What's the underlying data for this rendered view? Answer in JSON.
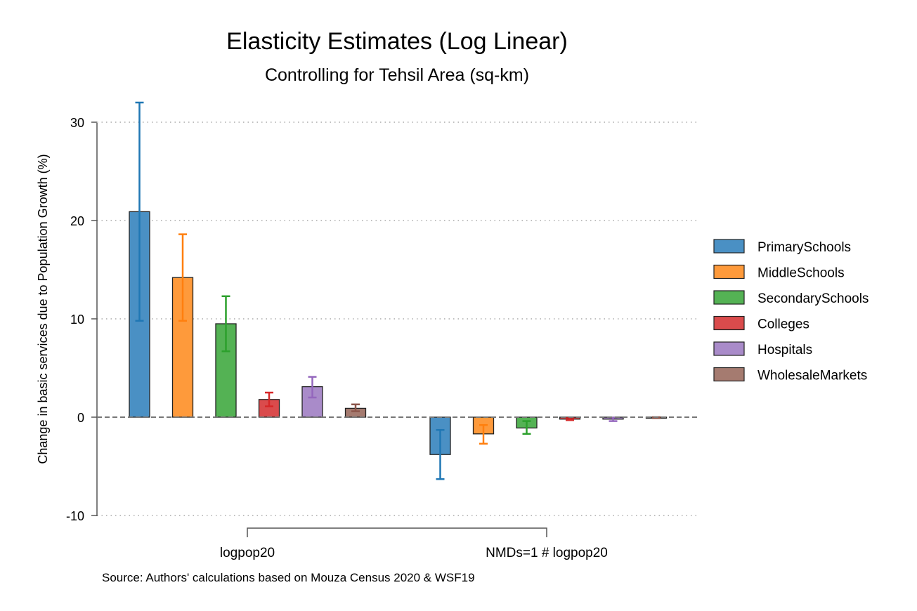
{
  "chart_data": {
    "type": "bar",
    "title": "Elasticity Estimates (Log Linear)",
    "subtitle": "Controlling for Tehsil Area (sq-km)",
    "ylabel": "Change in basic services due to Population Growth (%)",
    "xlabel": "",
    "ylim": [
      -10,
      32
    ],
    "yticks": [
      -10,
      0,
      10,
      20,
      30
    ],
    "grid": "horizontal dotted",
    "legend_position": "right",
    "categories": [
      "logpop20",
      "NMDs=1 # logpop20"
    ],
    "series": [
      {
        "name": "PrimarySchools",
        "color": "#4a90c4",
        "err_color": "#1f77b4",
        "values": [
          20.9,
          -3.8
        ],
        "ci_low": [
          9.8,
          -6.3
        ],
        "ci_high": [
          32.0,
          -1.3
        ]
      },
      {
        "name": "MiddleSchools",
        "color": "#fe9a3b",
        "err_color": "#ff7f0e",
        "values": [
          14.2,
          -1.7
        ],
        "ci_low": [
          9.8,
          -2.7
        ],
        "ci_high": [
          18.6,
          -0.8
        ]
      },
      {
        "name": "SecondarySchools",
        "color": "#54b254",
        "err_color": "#2ca02c",
        "values": [
          9.5,
          -1.1
        ],
        "ci_low": [
          6.7,
          -1.7
        ],
        "ci_high": [
          12.3,
          -0.4
        ]
      },
      {
        "name": "Colleges",
        "color": "#da4b4c",
        "err_color": "#d62728",
        "values": [
          1.8,
          -0.2
        ],
        "ci_low": [
          1.1,
          -0.3
        ],
        "ci_high": [
          2.5,
          -0.1
        ]
      },
      {
        "name": "Hospitals",
        "color": "#a98bc9",
        "err_color": "#9467bd",
        "values": [
          3.1,
          -0.2
        ],
        "ci_low": [
          2.0,
          -0.4
        ],
        "ci_high": [
          4.1,
          -0.05
        ]
      },
      {
        "name": "WholesaleMarkets",
        "color": "#a57b70",
        "err_color": "#8c564b",
        "values": [
          0.9,
          -0.05
        ],
        "ci_low": [
          0.6,
          -0.1
        ],
        "ci_high": [
          1.3,
          0.0
        ]
      }
    ],
    "note": "Source: Authors' calculations based on Mouza Census 2020 & WSF19"
  }
}
